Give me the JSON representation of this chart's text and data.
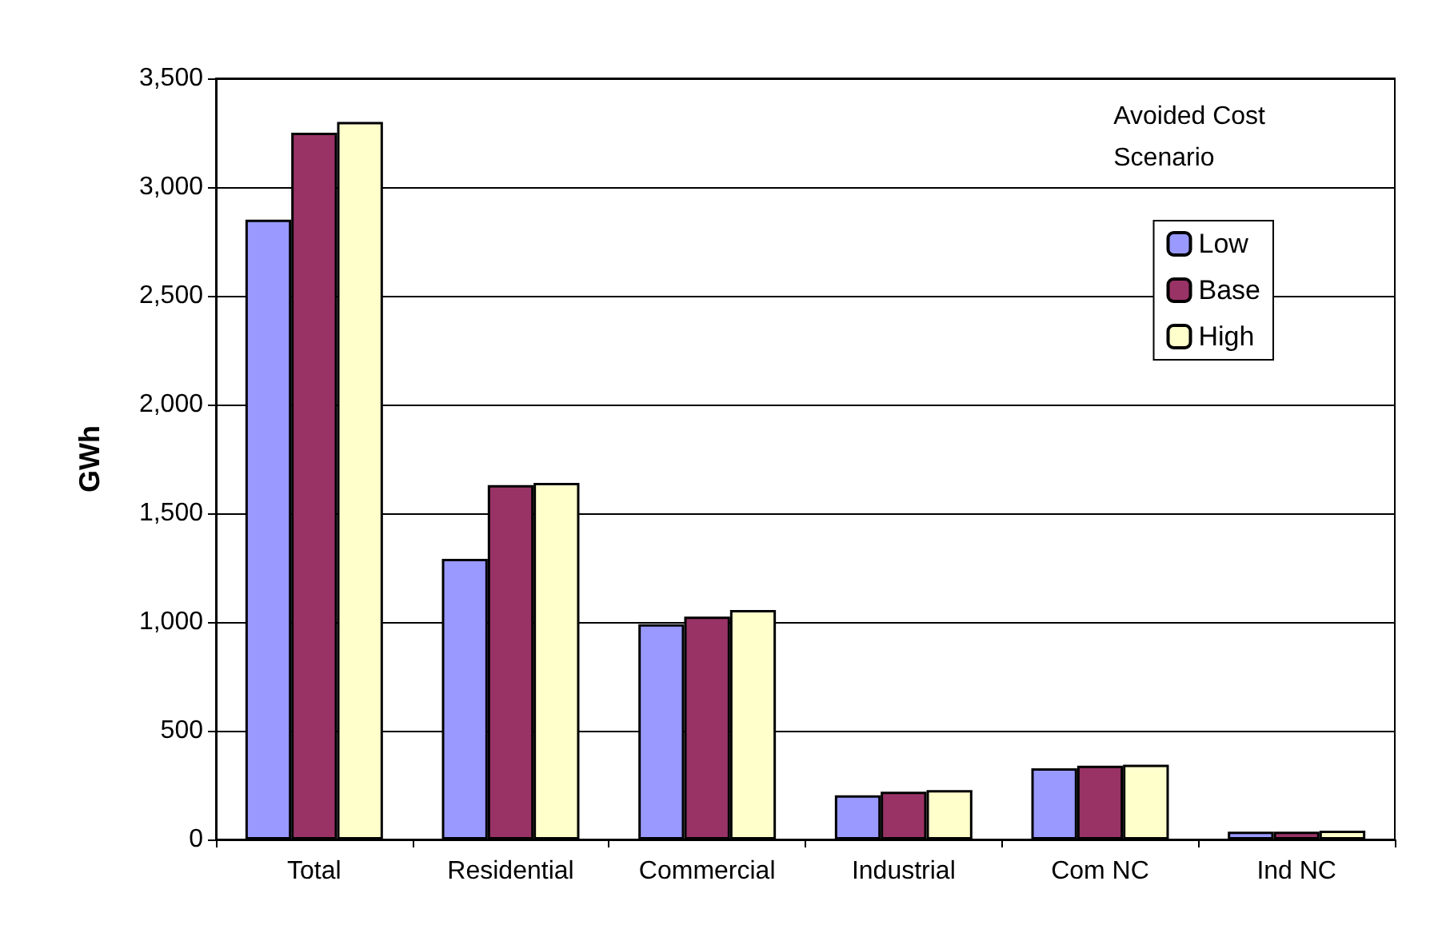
{
  "chart_data": {
    "type": "bar",
    "ylabel": "GWh",
    "legend_title": "Avoided Cost Scenario",
    "categories": [
      "Total",
      "Residential",
      "Commercial",
      "Industrial",
      "Com NC",
      "Ind NC"
    ],
    "series": [
      {
        "name": "Low",
        "color": "#9999ff",
        "values": [
          2850,
          1290,
          990,
          203,
          327,
          36
        ]
      },
      {
        "name": "Base",
        "color": "#993366",
        "values": [
          3250,
          1630,
          1025,
          220,
          339,
          36
        ]
      },
      {
        "name": "High",
        "color": "#ffffcc",
        "values": [
          3300,
          1640,
          1055,
          227,
          344,
          40
        ]
      }
    ],
    "ylim": [
      0,
      3500
    ],
    "yticks": [
      {
        "value": 0,
        "label": "0"
      },
      {
        "value": 500,
        "label": "500"
      },
      {
        "value": 1000,
        "label": "1,000"
      },
      {
        "value": 1500,
        "label": "1,500"
      },
      {
        "value": 2000,
        "label": "2,000"
      },
      {
        "value": 2500,
        "label": "2,500"
      },
      {
        "value": 3000,
        "label": "3,000"
      },
      {
        "value": 3500,
        "label": "3,500"
      }
    ],
    "grid": "y",
    "legend": "top right"
  }
}
